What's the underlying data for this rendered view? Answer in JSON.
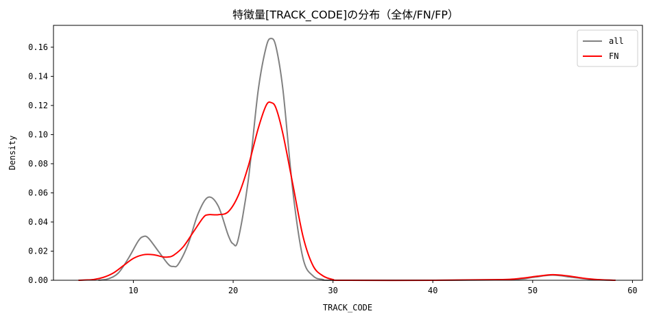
{
  "chart_data": {
    "type": "line",
    "title": "特徴量[TRACK_CODE]の分布（全体/FN/FP）",
    "xlabel": "TRACK_CODE",
    "ylabel": "Density",
    "xlim": [
      2,
      61
    ],
    "ylim": [
      0,
      0.175
    ],
    "xticks": [
      10,
      20,
      30,
      40,
      50,
      60
    ],
    "yticks": [
      0.0,
      0.02,
      0.04,
      0.06,
      0.08,
      0.1,
      0.12,
      0.14,
      0.16
    ],
    "ytick_labels": [
      "0.00",
      "0.02",
      "0.04",
      "0.06",
      "0.08",
      "0.10",
      "0.12",
      "0.14",
      "0.16"
    ],
    "xtick_labels": [
      "10",
      "20",
      "30",
      "40",
      "50",
      "60"
    ],
    "legend_position": "top-right",
    "grid": false,
    "series": [
      {
        "name": "all",
        "color": "#808080",
        "points": [
          [
            6.5,
            0.0
          ],
          [
            7.5,
            0.001
          ],
          [
            8.5,
            0.005
          ],
          [
            9.5,
            0.015
          ],
          [
            10.5,
            0.027
          ],
          [
            11.0,
            0.03
          ],
          [
            11.5,
            0.029
          ],
          [
            12.5,
            0.02
          ],
          [
            13.5,
            0.011
          ],
          [
            14.0,
            0.0095
          ],
          [
            14.5,
            0.011
          ],
          [
            15.5,
            0.025
          ],
          [
            16.5,
            0.046
          ],
          [
            17.5,
            0.057
          ],
          [
            18.5,
            0.051
          ],
          [
            19.5,
            0.031
          ],
          [
            20.0,
            0.025
          ],
          [
            20.5,
            0.028
          ],
          [
            21.5,
            0.068
          ],
          [
            22.5,
            0.13
          ],
          [
            23.3,
            0.16
          ],
          [
            23.8,
            0.166
          ],
          [
            24.3,
            0.16
          ],
          [
            25.0,
            0.13
          ],
          [
            26.0,
            0.06
          ],
          [
            27.0,
            0.015
          ],
          [
            28.0,
            0.003
          ],
          [
            29.0,
            0.0005
          ],
          [
            30.0,
            0.0
          ],
          [
            40.0,
            0.0
          ],
          [
            48.0,
            0.0005
          ],
          [
            50.0,
            0.002
          ],
          [
            52.0,
            0.0035
          ],
          [
            54.0,
            0.002
          ],
          [
            56.0,
            0.0005
          ],
          [
            58.3,
            0.0
          ]
        ]
      },
      {
        "name": "FN",
        "color": "#ff0000",
        "points": [
          [
            4.5,
            0.0
          ],
          [
            6.0,
            0.0005
          ],
          [
            7.0,
            0.002
          ],
          [
            8.0,
            0.005
          ],
          [
            9.0,
            0.01
          ],
          [
            10.0,
            0.015
          ],
          [
            11.0,
            0.0175
          ],
          [
            12.0,
            0.0175
          ],
          [
            13.0,
            0.016
          ],
          [
            13.5,
            0.016
          ],
          [
            14.0,
            0.017
          ],
          [
            15.0,
            0.023
          ],
          [
            16.0,
            0.033
          ],
          [
            17.0,
            0.043
          ],
          [
            17.5,
            0.045
          ],
          [
            18.5,
            0.045
          ],
          [
            19.5,
            0.047
          ],
          [
            20.5,
            0.058
          ],
          [
            21.5,
            0.078
          ],
          [
            22.5,
            0.104
          ],
          [
            23.3,
            0.12
          ],
          [
            23.8,
            0.122
          ],
          [
            24.3,
            0.118
          ],
          [
            25.0,
            0.1
          ],
          [
            26.0,
            0.065
          ],
          [
            27.0,
            0.03
          ],
          [
            28.0,
            0.01
          ],
          [
            29.0,
            0.003
          ],
          [
            30.0,
            0.0005
          ],
          [
            31.0,
            0.0
          ],
          [
            40.0,
            0.0
          ],
          [
            47.0,
            0.0005
          ],
          [
            49.0,
            0.0015
          ],
          [
            50.5,
            0.0028
          ],
          [
            52.0,
            0.0038
          ],
          [
            53.5,
            0.003
          ],
          [
            55.0,
            0.0015
          ],
          [
            56.5,
            0.0005
          ],
          [
            58.3,
            0.0
          ]
        ]
      }
    ]
  }
}
